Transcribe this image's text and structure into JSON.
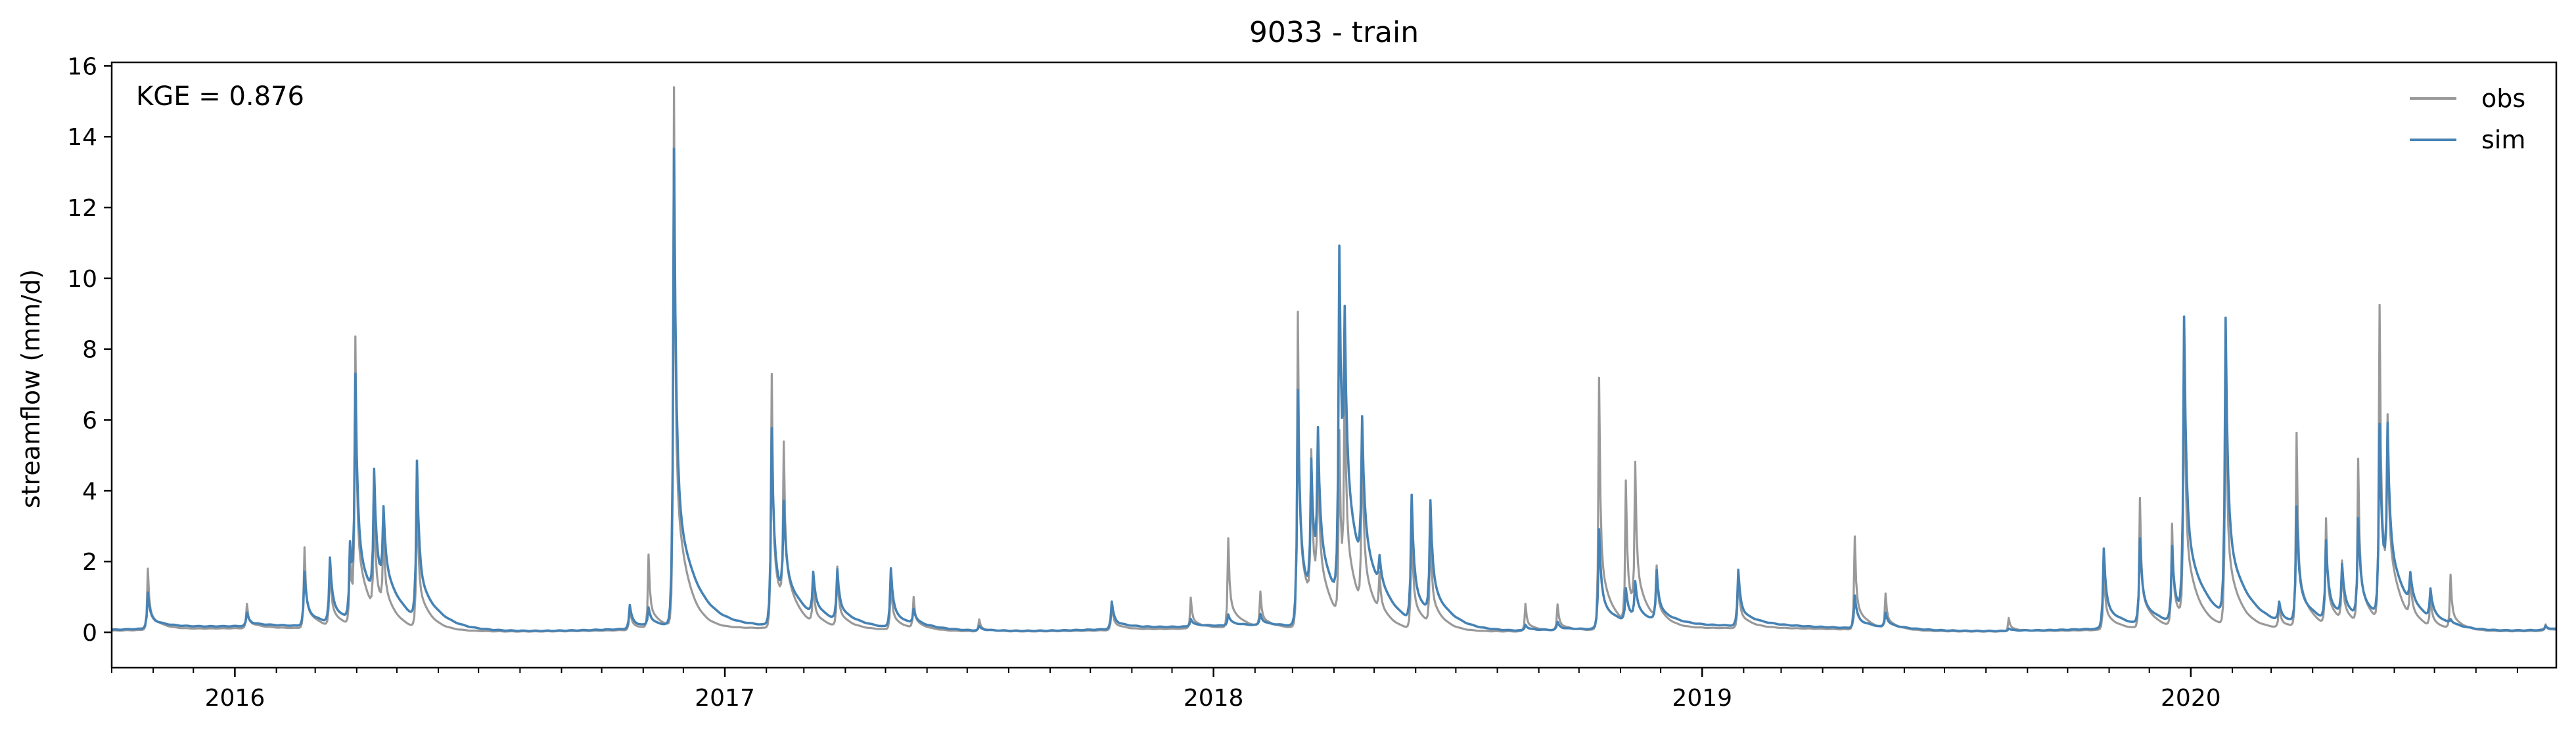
{
  "chart_data": {
    "type": "line",
    "title": "9033 - train",
    "ylabel": "streamflow (mm/d)",
    "xlabel": "",
    "annotation": "KGE = 0.876",
    "ylim": [
      -1,
      16.1
    ],
    "xlim": [
      "2015-10-01",
      "2020-09-30"
    ],
    "yticks": [
      0,
      2,
      4,
      6,
      8,
      10,
      12,
      14,
      16
    ],
    "xticks": [
      "2016",
      "2017",
      "2018",
      "2019",
      "2020"
    ],
    "legend_position": "top-right",
    "grid": false,
    "baseline": {
      "obs": 0.12,
      "sim": 0.18
    },
    "series": [
      {
        "name": "obs",
        "color": "#999999",
        "peaks": [
          [
            "2015-10-28",
            1.85
          ],
          [
            "2016-01-10",
            0.8
          ],
          [
            "2016-02-22",
            2.4
          ],
          [
            "2016-03-12",
            2.0
          ],
          [
            "2016-03-27",
            2.3
          ],
          [
            "2016-03-31",
            7.85
          ],
          [
            "2016-04-14",
            3.4
          ],
          [
            "2016-04-21",
            2.3
          ],
          [
            "2016-05-16",
            4.5
          ],
          [
            "2016-10-22",
            0.8
          ],
          [
            "2016-11-05",
            2.2
          ],
          [
            "2016-11-24",
            15.35
          ],
          [
            "2017-02-05",
            7.3
          ],
          [
            "2017-02-14",
            4.6
          ],
          [
            "2017-03-08",
            1.3
          ],
          [
            "2017-03-26",
            1.8
          ],
          [
            "2017-05-05",
            1.6
          ],
          [
            "2017-05-22",
            1.0
          ],
          [
            "2017-07-10",
            0.45
          ],
          [
            "2017-10-17",
            0.9
          ],
          [
            "2017-12-15",
            1.0
          ],
          [
            "2018-01-12",
            2.65
          ],
          [
            "2018-02-05",
            1.1
          ],
          [
            "2018-03-05",
            9.05
          ],
          [
            "2018-03-15",
            4.3
          ],
          [
            "2018-03-20",
            4.3
          ],
          [
            "2018-04-05",
            5.3
          ],
          [
            "2018-04-09",
            6.4
          ],
          [
            "2018-04-22",
            5.4
          ],
          [
            "2018-05-05",
            1.2
          ],
          [
            "2018-05-29",
            3.4
          ],
          [
            "2018-06-12",
            3.0
          ],
          [
            "2018-08-22",
            0.9
          ],
          [
            "2018-09-15",
            0.85
          ],
          [
            "2018-10-16",
            7.25
          ],
          [
            "2018-11-05",
            4.1
          ],
          [
            "2018-11-12",
            4.2
          ],
          [
            "2018-11-28",
            1.6
          ],
          [
            "2019-01-28",
            1.7
          ],
          [
            "2019-04-25",
            2.75
          ],
          [
            "2019-05-18",
            1.1
          ],
          [
            "2019-08-18",
            0.5
          ],
          [
            "2019-10-28",
            2.0
          ],
          [
            "2019-11-24",
            3.8
          ],
          [
            "2019-12-18",
            3.0
          ],
          [
            "2019-12-27",
            8.4
          ],
          [
            "2020-01-27",
            8.4
          ],
          [
            "2020-03-07",
            0.8
          ],
          [
            "2020-03-20",
            5.6
          ],
          [
            "2020-04-11",
            3.1
          ],
          [
            "2020-04-23",
            1.8
          ],
          [
            "2020-05-05",
            4.75
          ],
          [
            "2020-05-21",
            9.05
          ],
          [
            "2020-05-27",
            4.7
          ],
          [
            "2020-06-13",
            1.3
          ],
          [
            "2020-06-28",
            1.0
          ],
          [
            "2020-07-13",
            1.65
          ],
          [
            "2020-09-22",
            0.3
          ]
        ]
      },
      {
        "name": "sim",
        "color": "#4682b4",
        "peaks": [
          [
            "2015-10-28",
            1.2
          ],
          [
            "2016-01-10",
            0.55
          ],
          [
            "2016-02-22",
            1.7
          ],
          [
            "2016-03-12",
            2.0
          ],
          [
            "2016-03-27",
            2.3
          ],
          [
            "2016-03-31",
            6.55
          ],
          [
            "2016-04-14",
            3.7
          ],
          [
            "2016-04-21",
            2.35
          ],
          [
            "2016-05-16",
            4.6
          ],
          [
            "2016-10-22",
            0.85
          ],
          [
            "2016-11-05",
            0.7
          ],
          [
            "2016-11-24",
            13.65
          ],
          [
            "2017-02-05",
            5.75
          ],
          [
            "2017-02-14",
            2.8
          ],
          [
            "2017-03-08",
            1.35
          ],
          [
            "2017-03-26",
            1.6
          ],
          [
            "2017-05-05",
            1.85
          ],
          [
            "2017-05-22",
            0.6
          ],
          [
            "2017-07-10",
            0.3
          ],
          [
            "2017-10-17",
            0.95
          ],
          [
            "2017-12-15",
            0.4
          ],
          [
            "2018-01-12",
            0.5
          ],
          [
            "2018-02-05",
            0.5
          ],
          [
            "2018-03-05",
            6.85
          ],
          [
            "2018-03-15",
            3.9
          ],
          [
            "2018-03-20",
            4.2
          ],
          [
            "2018-04-05",
            10.0
          ],
          [
            "2018-04-09",
            5.8
          ],
          [
            "2018-04-22",
            4.3
          ],
          [
            "2018-05-05",
            1.0
          ],
          [
            "2018-05-29",
            3.7
          ],
          [
            "2018-06-12",
            3.35
          ],
          [
            "2018-08-22",
            0.35
          ],
          [
            "2018-09-15",
            0.4
          ],
          [
            "2018-10-16",
            3.0
          ],
          [
            "2018-11-05",
            1.1
          ],
          [
            "2018-11-12",
            1.2
          ],
          [
            "2018-11-28",
            1.6
          ],
          [
            "2019-01-28",
            1.75
          ],
          [
            "2019-04-25",
            1.1
          ],
          [
            "2019-05-18",
            0.6
          ],
          [
            "2019-08-18",
            0.25
          ],
          [
            "2019-10-28",
            2.45
          ],
          [
            "2019-11-24",
            2.6
          ],
          [
            "2019-12-18",
            2.3
          ],
          [
            "2019-12-27",
            8.5
          ],
          [
            "2020-01-27",
            8.55
          ],
          [
            "2020-03-07",
            0.7
          ],
          [
            "2020-03-20",
            3.45
          ],
          [
            "2020-04-11",
            2.4
          ],
          [
            "2020-04-23",
            1.6
          ],
          [
            "2020-05-05",
            2.95
          ],
          [
            "2020-05-21",
            5.6
          ],
          [
            "2020-05-27",
            4.6
          ],
          [
            "2020-06-13",
            1.0
          ],
          [
            "2020-06-28",
            1.0
          ],
          [
            "2020-07-13",
            0.3
          ],
          [
            "2020-09-22",
            0.3
          ]
        ]
      }
    ]
  }
}
